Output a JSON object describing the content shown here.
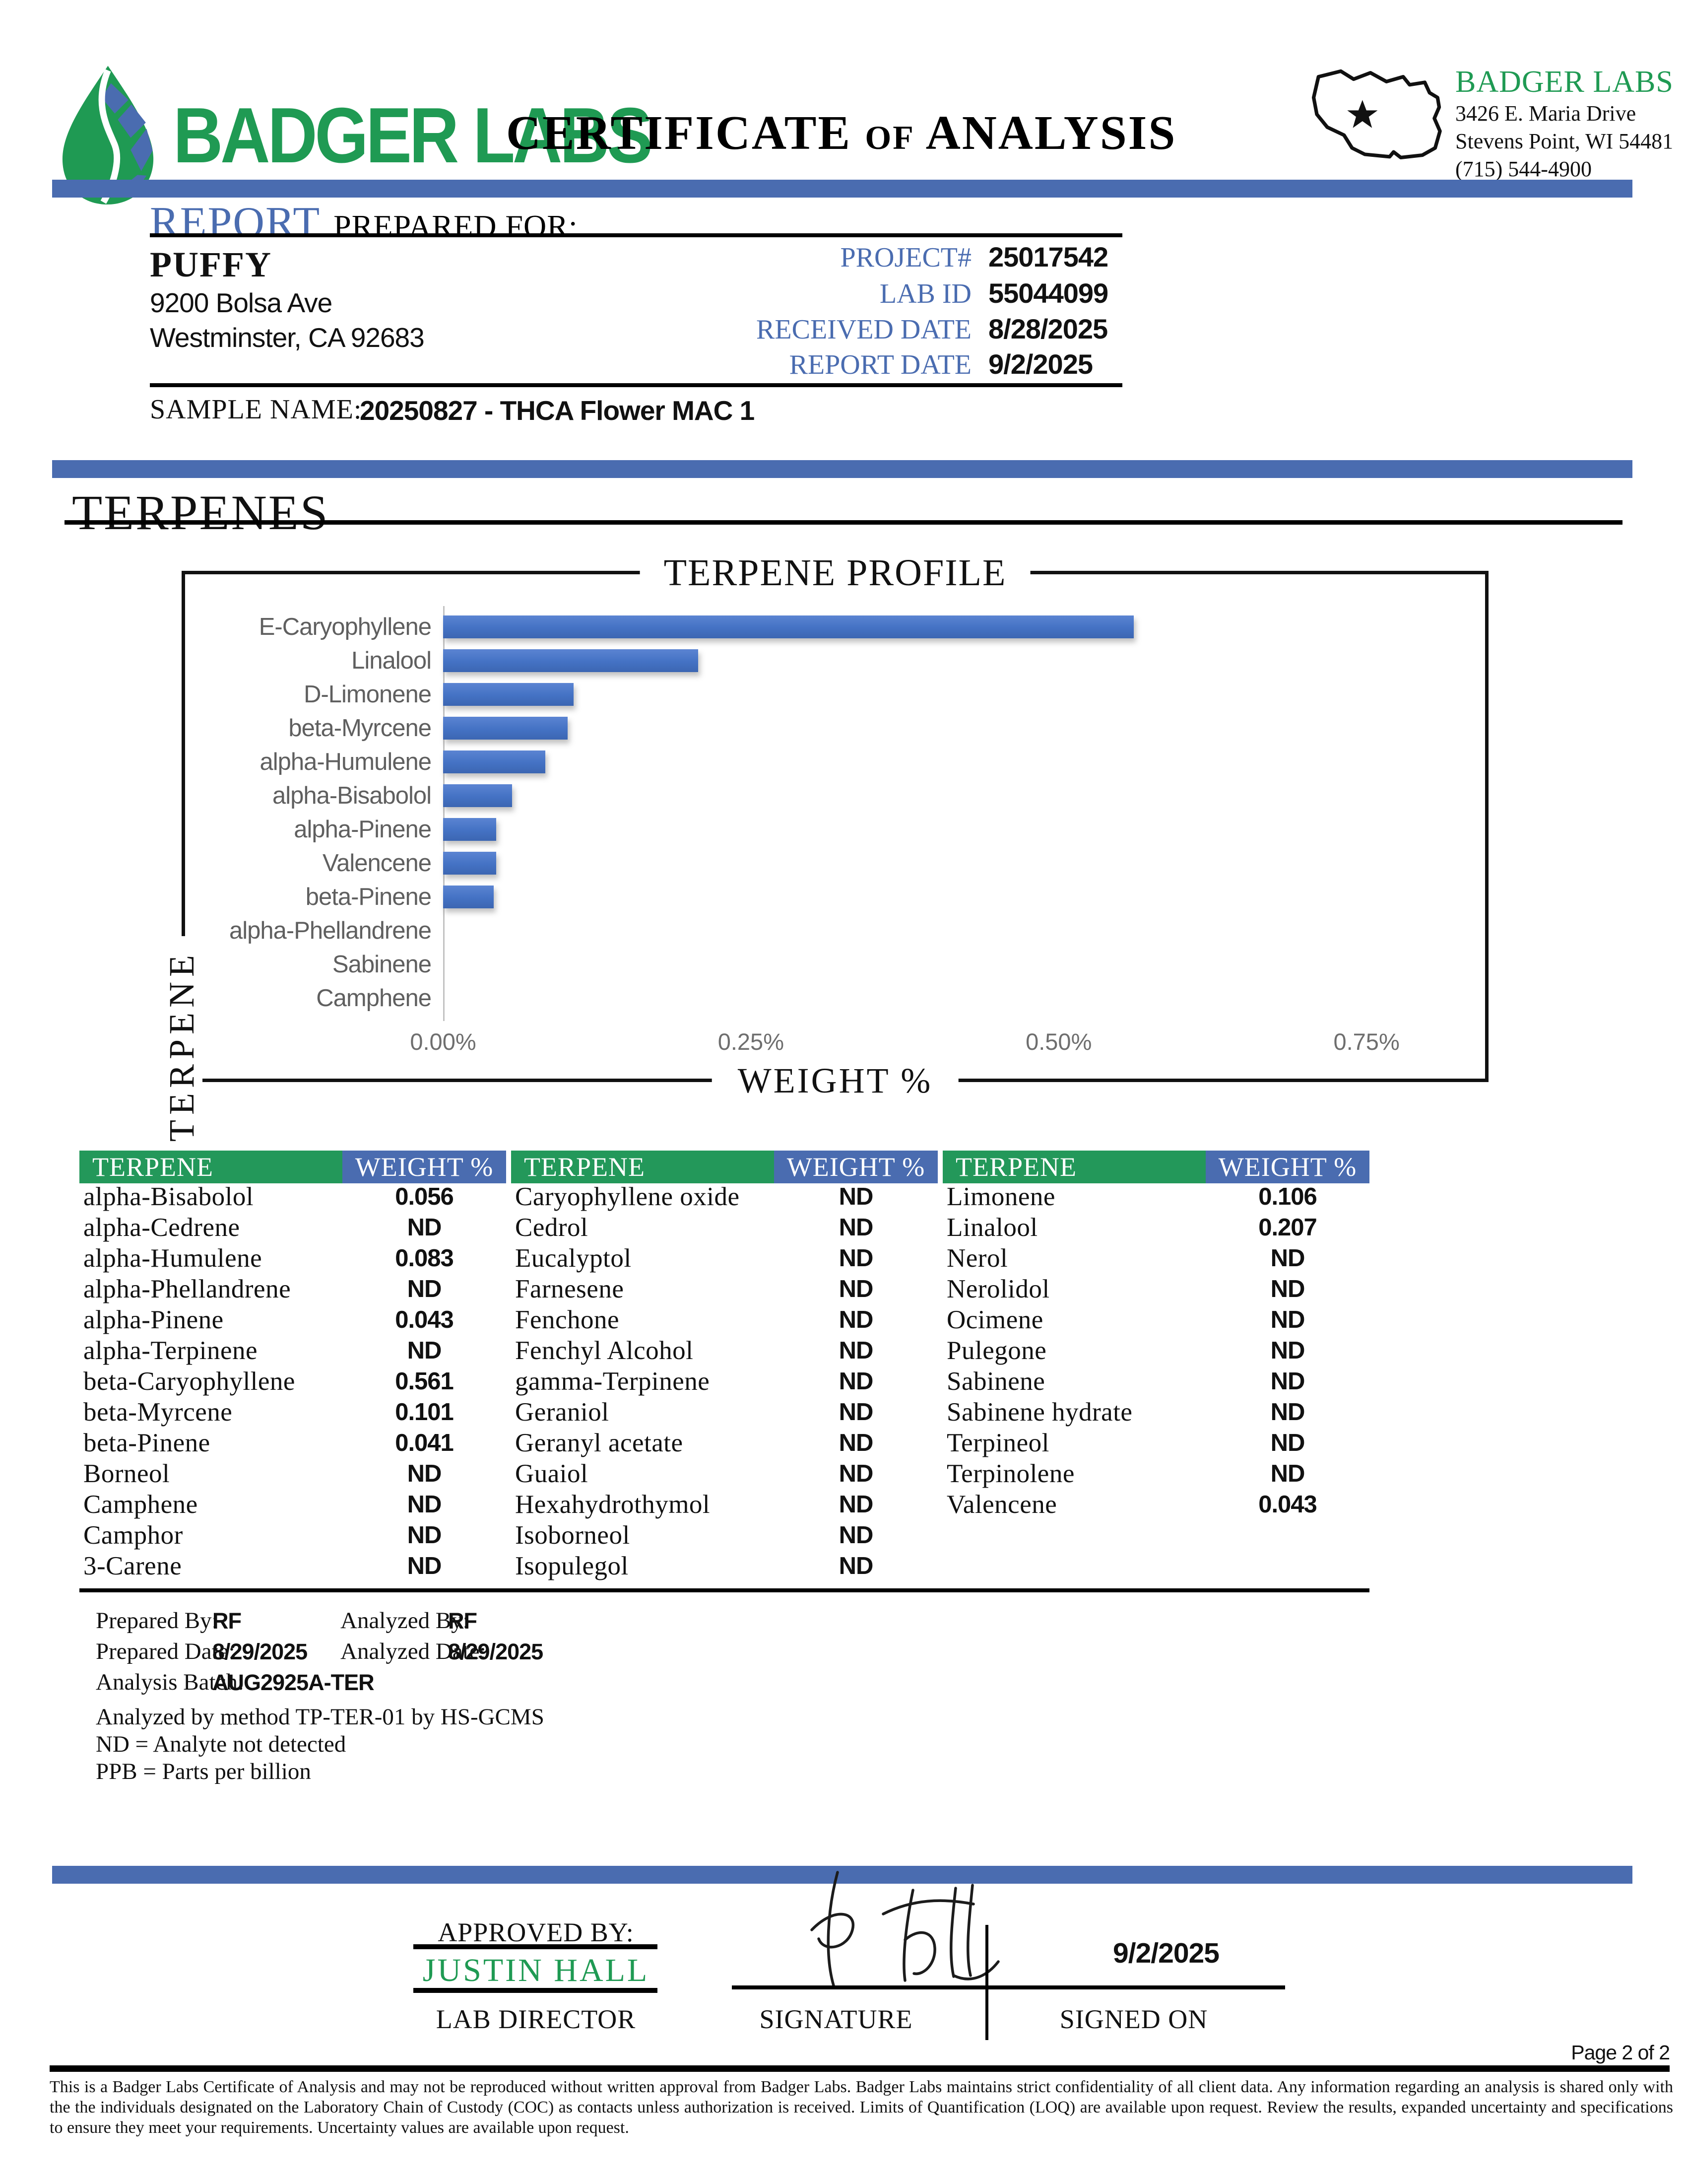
{
  "header": {
    "logo_text": "BADGER LABS",
    "title": "CERTIFICATE of ANALYSIS",
    "lab": {
      "name": "BADGER LABS",
      "address1": "3426 E. Maria Drive",
      "address2": "Stevens Point, WI 54481",
      "phone": "(715) 544-4900"
    }
  },
  "report": {
    "section_word": "REPORT",
    "section_rest": "PREPARED FOR:",
    "client_name": "PUFFY",
    "client_address1": "9200 Bolsa Ave",
    "client_address2": "Westminster, CA  92683",
    "fields": [
      {
        "label": "PROJECT#",
        "value": "25017542"
      },
      {
        "label": "LAB ID",
        "value": "55044099"
      },
      {
        "label": "RECEIVED DATE",
        "value": "8/28/2025"
      },
      {
        "label": "REPORT DATE",
        "value": "9/2/2025"
      }
    ],
    "sample_name_label": "SAMPLE NAME:",
    "sample_name": "20250827 - THCA Flower MAC 1"
  },
  "section": {
    "title": "TERPENES"
  },
  "chart_data": {
    "type": "bar",
    "orientation": "horizontal",
    "title": "TERPENE PROFILE",
    "xlabel": "WEIGHT %",
    "ylabel": "TERPENE",
    "categories": [
      "E-Caryophyllene",
      "Linalool",
      "D-Limonene",
      "beta-Myrcene",
      "alpha-Humulene",
      "alpha-Bisabolol",
      "alpha-Pinene",
      "Valencene",
      "beta-Pinene",
      "alpha-Phellandrene",
      "Sabinene",
      "Camphene"
    ],
    "values": [
      0.561,
      0.207,
      0.106,
      0.101,
      0.083,
      0.056,
      0.043,
      0.043,
      0.041,
      0,
      0,
      0
    ],
    "x_ticks": [
      "0.00%",
      "0.25%",
      "0.50%",
      "0.75%"
    ],
    "x_tick_values": [
      0,
      0.25,
      0.5,
      0.75
    ],
    "xlim": [
      0,
      0.81
    ],
    "grid": false,
    "legend": false,
    "bar_color": "#4472c4"
  },
  "table": {
    "header_terpene": "TERPENE",
    "header_weight": "WEIGHT %",
    "groups": [
      {
        "rows": [
          [
            "alpha-Bisabolol",
            "0.056"
          ],
          [
            "alpha-Cedrene",
            "ND"
          ],
          [
            "alpha-Humulene",
            "0.083"
          ],
          [
            "alpha-Phellandrene",
            "ND"
          ],
          [
            "alpha-Pinene",
            "0.043"
          ],
          [
            "alpha-Terpinene",
            "ND"
          ],
          [
            "beta-Caryophyllene",
            "0.561"
          ],
          [
            "beta-Myrcene",
            "0.101"
          ],
          [
            "beta-Pinene",
            "0.041"
          ],
          [
            "Borneol",
            "ND"
          ],
          [
            "Camphene",
            "ND"
          ],
          [
            "Camphor",
            "ND"
          ],
          [
            "3-Carene",
            "ND"
          ]
        ]
      },
      {
        "rows": [
          [
            "Caryophyllene oxide",
            "ND"
          ],
          [
            "Cedrol",
            "ND"
          ],
          [
            "Eucalyptol",
            "ND"
          ],
          [
            "Farnesene",
            "ND"
          ],
          [
            "Fenchone",
            "ND"
          ],
          [
            "Fenchyl Alcohol",
            "ND"
          ],
          [
            "gamma-Terpinene",
            "ND"
          ],
          [
            "Geraniol",
            "ND"
          ],
          [
            "Geranyl acetate",
            "ND"
          ],
          [
            "Guaiol",
            "ND"
          ],
          [
            "Hexahydrothymol",
            "ND"
          ],
          [
            "Isoborneol",
            "ND"
          ],
          [
            "Isopulegol",
            "ND"
          ]
        ]
      },
      {
        "rows": [
          [
            "Limonene",
            "0.106"
          ],
          [
            "Linalool",
            "0.207"
          ],
          [
            "Nerol",
            "ND"
          ],
          [
            "Nerolidol",
            "ND"
          ],
          [
            "Ocimene",
            "ND"
          ],
          [
            "Pulegone",
            "ND"
          ],
          [
            "Sabinene",
            "ND"
          ],
          [
            "Sabinene hydrate",
            "ND"
          ],
          [
            "Terpineol",
            "ND"
          ],
          [
            "Terpinolene",
            "ND"
          ],
          [
            "Valencene",
            "0.043"
          ]
        ]
      }
    ]
  },
  "analysis": {
    "prepared_by_label": "Prepared By:",
    "prepared_by": "RF",
    "analyzed_by_label": "Analyzed By:",
    "analyzed_by": "RF",
    "prepared_date_label": "Prepared Date:",
    "prepared_date": "8/29/2025",
    "analyzed_date_label": "Analyzed Date:",
    "analyzed_date": "8/29/2025",
    "analysis_batch_label": "Analysis Batch:",
    "analysis_batch": "AUG2925A-TER",
    "method_note": "Analyzed by method TP-TER-01 by HS-GCMS",
    "nd_note": "ND = Analyte not detected",
    "ppb_note": "PPB = Parts per billion"
  },
  "approval": {
    "approved_by_label": "APPROVED BY:",
    "approver_name": "JUSTIN HALL",
    "approver_title": "LAB DIRECTOR",
    "signature_label": "SIGNATURE",
    "signed_on_label": "SIGNED ON",
    "signed_date": "9/2/2025"
  },
  "footer": {
    "page_label": "Page 2 of 2",
    "disclaimer": "This is a Badger Labs Certificate of Analysis and may not be reproduced without written approval from Badger Labs. Badger Labs maintains strict confidentiality of all client data. Any information regarding an analysis is shared only with the the individuals designated on the Laboratory Chain of Custody (COC) as contacts unless authorization is received. Limits of Quantification (LOQ) are available upon request. Review the results, expanded uncertainty and specifications to ensure they meet your requirements. Uncertainty values are available upon request."
  },
  "colors": {
    "brand_green": "#1f9a53",
    "band_blue": "#4a6cb0",
    "bar_blue": "#4472c4"
  }
}
